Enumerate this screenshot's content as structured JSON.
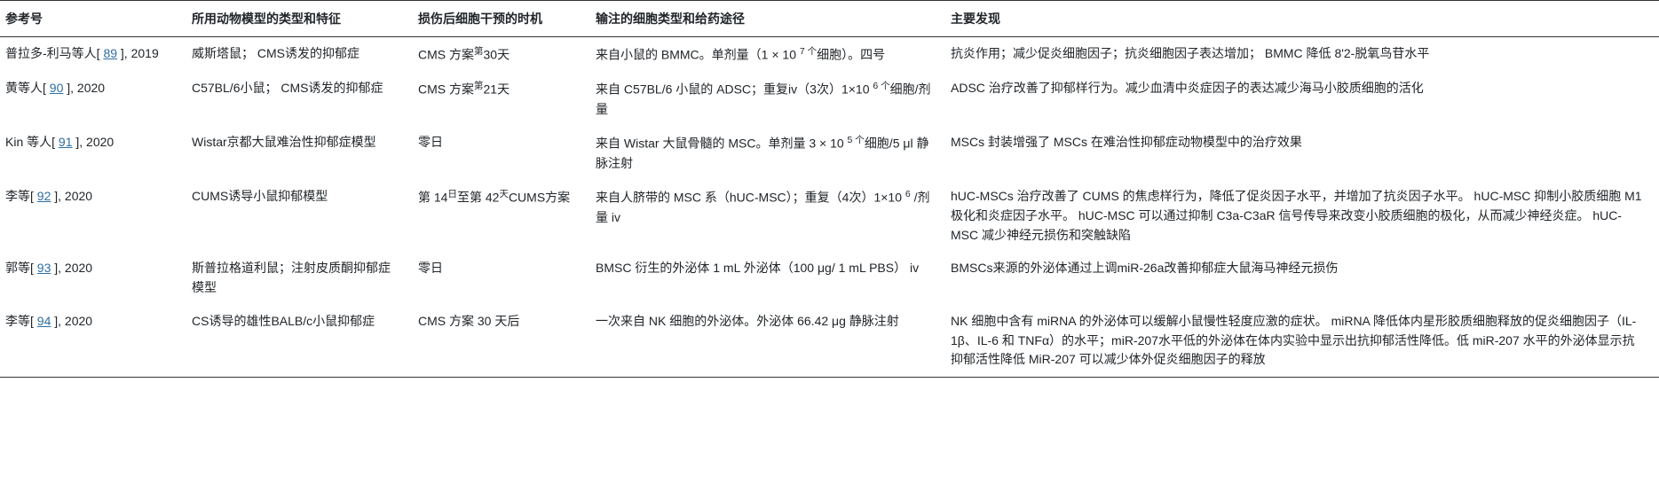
{
  "headers": {
    "ref": "参考号",
    "animal": "所用动物模型的类型和特征",
    "timing": "损伤后细胞干预的时机",
    "cell": "输注的细胞类型和给药途径",
    "findings": "主要发现"
  },
  "rows": [
    {
      "author_pre": "普拉多-利马等人[ ",
      "ref_num": "89",
      "author_post": " ], 2019",
      "animal": "威斯塔鼠； CMS诱发的抑郁症",
      "timing_html": "CMS 方案<sup>第</sup>30天",
      "cell_html": "来自小鼠的 BMMC。单剂量（1 × 10 <sup>7 个</sup>细胞）。四号",
      "findings": "抗炎作用；减少促炎细胞因子；抗炎细胞因子表达增加； BMMC 降低 8'2-脱氧鸟苷水平"
    },
    {
      "author_pre": "黄等人[ ",
      "ref_num": "90",
      "author_post": " ], 2020",
      "animal": "C57BL/6小鼠； CMS诱发的抑郁症",
      "timing_html": "CMS 方案<sup>第</sup>21天",
      "cell_html": "来自 C57BL/6 小鼠的 ADSC；重复iv（3次）1×10 <sup>6 个</sup>细胞/剂量",
      "findings": "ADSC 治疗改善了抑郁样行为。减少血清中炎症因子的表达减少海马小胶质细胞的活化"
    },
    {
      "author_pre": "Kin 等人[ ",
      "ref_num": "91",
      "author_post": " ], 2020",
      "animal": "Wistar京都大鼠难治性抑郁症模型",
      "timing_html": "零日",
      "cell_html": "来自 Wistar 大鼠骨髓的 MSC。单剂量 3 × 10 <sup>5 个</sup>细胞/5 μl 静脉注射",
      "findings": "MSCs 封装增强了 MSCs 在难治性抑郁症动物模型中的治疗效果"
    },
    {
      "author_pre": "李等[ ",
      "ref_num": "92",
      "author_post": " ], 2020",
      "animal": "CUMS诱导小鼠抑郁模型",
      "timing_html": "第 14<sup>日</sup>至第 42<sup>天</sup>CUMS方案",
      "cell_html": "来自人脐带的 MSC 系（hUC-MSC）；重复（4次）1×10 <sup>6</sup> /剂量 iv",
      "findings": "hUC-MSCs 治疗改善了 CUMS 的焦虑样行为，降低了促炎因子水平，并增加了抗炎因子水平。 hUC-MSC 抑制小胶质细胞 M1 极化和炎症因子水平。 hUC-MSC 可以通过抑制 C3a-C3aR 信号传导来改变小胶质细胞的极化，从而减少神经炎症。 hUC-MSC 减少神经元损伤和突触缺陷"
    },
    {
      "author_pre": "郭等[ ",
      "ref_num": "93",
      "author_post": " ], 2020",
      "animal": "斯普拉格道利鼠；注射皮质酮抑郁症模型",
      "timing_html": "零日",
      "cell_html": "BMSC 衍生的外泌体 1 mL 外泌体（100 μg/ 1 mL PBS） iv",
      "findings": "BMSCs来源的外泌体通过上调miR-26a改善抑郁症大鼠海马神经元损伤"
    },
    {
      "author_pre": "李等[ ",
      "ref_num": "94",
      "author_post": " ], 2020",
      "animal": "CS诱导的雄性BALB/c小鼠抑郁症",
      "timing_html": "CMS 方案 30 天后",
      "cell_html": "一次来自 NK 细胞的外泌体。外泌体 66.42 μg 静脉注射",
      "findings": "NK 细胞中含有 miRNA 的外泌体可以缓解小鼠慢性轻度应激的症状。 miRNA 降低体内星形胶质细胞释放的促炎细胞因子（IL-1β、IL-6 和 TNFα）的水平；miR-207水平低的外泌体在体内实验中显示出抗抑郁活性降低。低 miR-207 水平的外泌体显示抗抑郁活性降低 MiR-207 可以减少体外促炎细胞因子的释放"
    }
  ]
}
